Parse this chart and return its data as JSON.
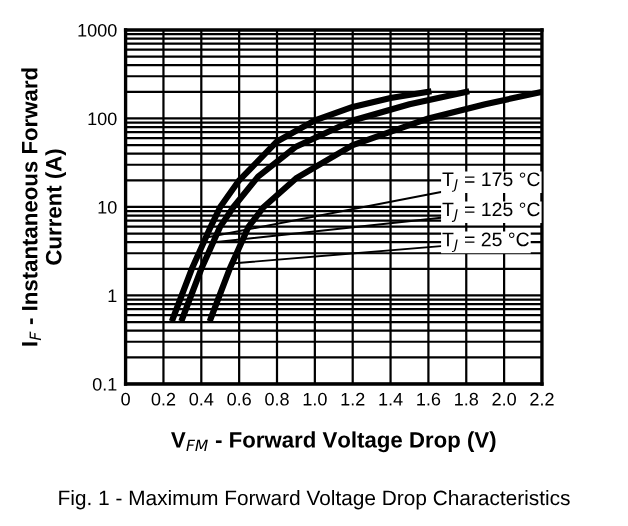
{
  "chart_data": {
    "type": "line",
    "xlabel": "V$_{FM}$ - Forward Voltage Drop (V)",
    "ylabel": "I$_{F}$ - Instantaneous Forward\nCurrent (A)",
    "log": "y",
    "grid": true,
    "marker": "none",
    "line_style": "solid",
    "xlim": [
      0,
      2.2
    ],
    "ylim": [
      0.1,
      1000
    ],
    "xticks": [
      0,
      0.2,
      0.4,
      0.6,
      0.8,
      {
        "value": 1.0,
        "label": "1.0"
      },
      1.2,
      1.4,
      1.6,
      1.8,
      {
        "value": 2.0,
        "label": "2.0"
      },
      2.2
    ],
    "yticks": [
      0.1,
      1,
      10,
      100,
      1000
    ],
    "series": [
      {
        "color": "#000000",
        "x": [
          0.25,
          0.35,
          0.45,
          0.5,
          0.6,
          0.8,
          1.0,
          1.2,
          1.4,
          1.6
        ],
        "values": [
          0.55,
          2,
          6,
          10,
          20,
          55,
          95,
          135,
          170,
          200
        ]
      },
      {
        "color": "#000000",
        "x": [
          0.3,
          0.4,
          0.5,
          0.57,
          0.7,
          0.9,
          1.2,
          1.5,
          1.8
        ],
        "values": [
          0.55,
          2,
          6,
          10,
          22,
          48,
          95,
          145,
          200
        ]
      },
      {
        "color": "#000000",
        "x": [
          0.45,
          0.55,
          0.65,
          0.73,
          0.9,
          1.2,
          1.6,
          1.9,
          2.2
        ],
        "values": [
          0.55,
          2,
          6,
          10,
          21,
          50,
          100,
          145,
          200
        ]
      }
    ],
    "annotations": [
      {
        "text": "T$_{J}$ = 175 °C",
        "x": 0.42,
        "y": 4.5
      },
      {
        "text": "T$_{J}$ = 125 °C",
        "x": 0.47,
        "y": 4
      },
      {
        "text": "T$_{J}$ = 25 °C",
        "x": 0.56,
        "y": 2.3
      },
      "Fig. 1 - Maximum Forward Voltage Drop Characteristics"
    ]
  }
}
